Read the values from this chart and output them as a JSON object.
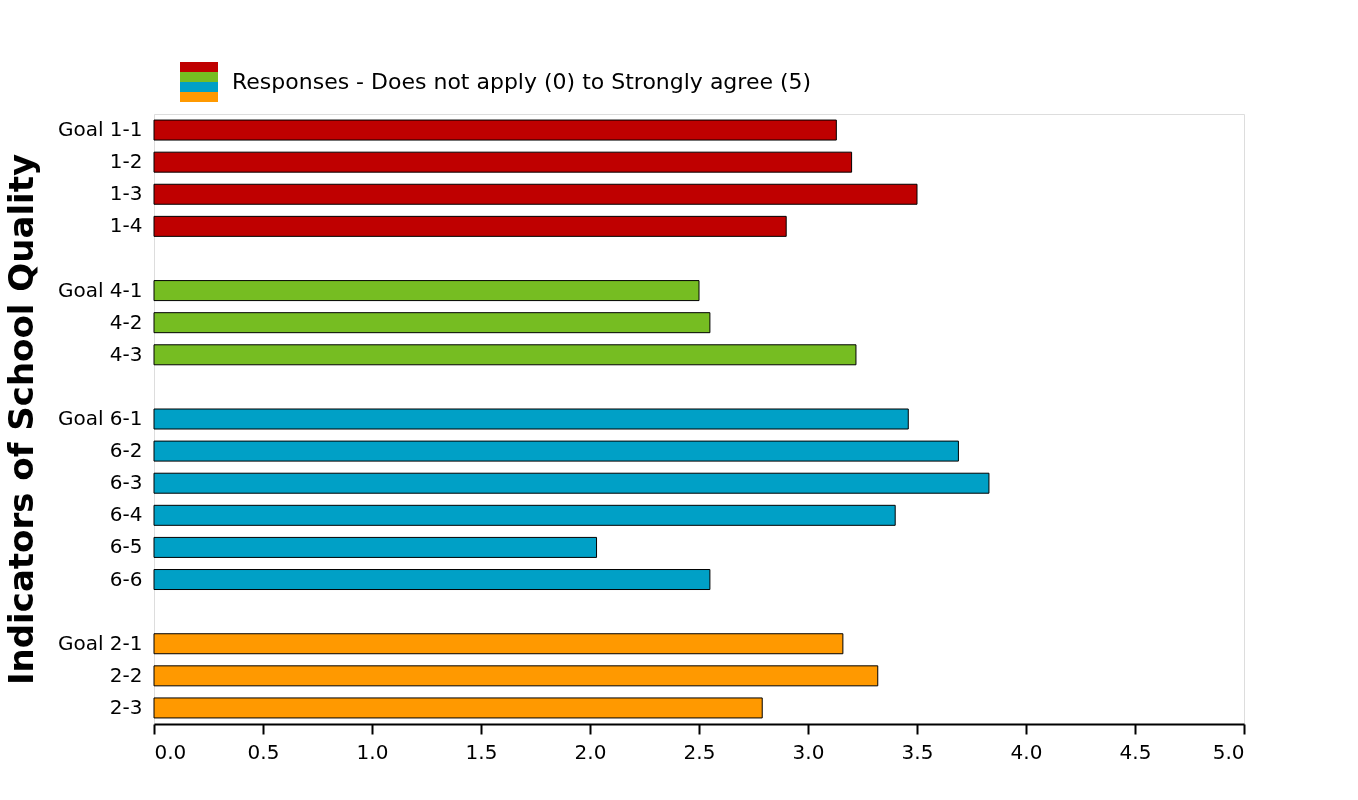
{
  "chart_data": {
    "type": "bar",
    "orientation": "horizontal",
    "ylabel": "Indicators of School Quality",
    "categories": [
      "Goal 1-1",
      "1-2",
      "1-3",
      "1-4",
      null,
      "Goal 4-1",
      "4-2",
      "4-3",
      null,
      "Goal 6-1",
      "6-2",
      "6-3",
      "6-4",
      "6-5",
      "6-6",
      null,
      "Goal 2-1",
      "2-2",
      "2-3"
    ],
    "series": [
      {
        "name": "Responses - Does not apply (0) to Strongly agree (5)",
        "values": [
          3.13,
          3.2,
          3.5,
          2.9,
          null,
          2.5,
          2.55,
          3.22,
          null,
          3.46,
          3.69,
          3.83,
          3.4,
          2.03,
          2.55,
          null,
          3.16,
          3.32,
          2.79
        ]
      }
    ],
    "colors": [
      "#bf0000",
      "#bf0000",
      "#bf0000",
      "#bf0000",
      null,
      "#76bd22",
      "#76bd22",
      "#76bd22",
      null,
      "#00a0c6",
      "#00a0c6",
      "#00a0c6",
      "#00a0c6",
      "#00a0c6",
      "#00a0c6",
      null,
      "#ff9900",
      "#ff9900",
      "#ff9900"
    ],
    "xlim": [
      0,
      5
    ],
    "xticks": [
      {
        "value": 0,
        "label": "0.0"
      },
      0.5,
      {
        "value": 1,
        "label": "1.0"
      },
      1.5,
      {
        "value": 2,
        "label": "2.0"
      },
      2.5,
      {
        "value": 3,
        "label": "3.0"
      },
      3.5,
      {
        "value": 4,
        "label": "4.0"
      },
      4.5,
      {
        "value": 5,
        "label": "5.0"
      }
    ],
    "legend": "top",
    "grid": false
  }
}
